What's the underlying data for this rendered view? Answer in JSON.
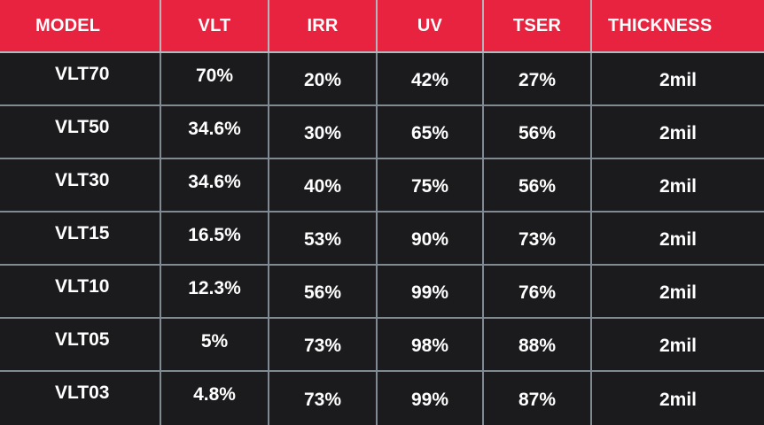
{
  "headers": [
    "MODEL",
    "VLT",
    "IRR",
    "UV",
    "TSER",
    "THICKNESS"
  ],
  "rows": [
    [
      "VLT70",
      "70%",
      "20%",
      "42%",
      "27%",
      "2mil"
    ],
    [
      "VLT50",
      "34.6%",
      "30%",
      "65%",
      "56%",
      "2mil"
    ],
    [
      "VLT30",
      "34.6%",
      "40%",
      "75%",
      "56%",
      "2mil"
    ],
    [
      "VLT15",
      "16.5%",
      "53%",
      "90%",
      "73%",
      "2mil"
    ],
    [
      "VLT10",
      "12.3%",
      "56%",
      "99%",
      "76%",
      "2mil"
    ],
    [
      "VLT05",
      "5%",
      "73%",
      "98%",
      "88%",
      "2mil"
    ],
    [
      "VLT03",
      "4.8%",
      "73%",
      "99%",
      "87%",
      "2mil"
    ]
  ],
  "colors": {
    "header_bg": "#e8233f",
    "body_bg": "#1b1b1d",
    "text": "#ffffff",
    "grid": "#7f8a93"
  }
}
